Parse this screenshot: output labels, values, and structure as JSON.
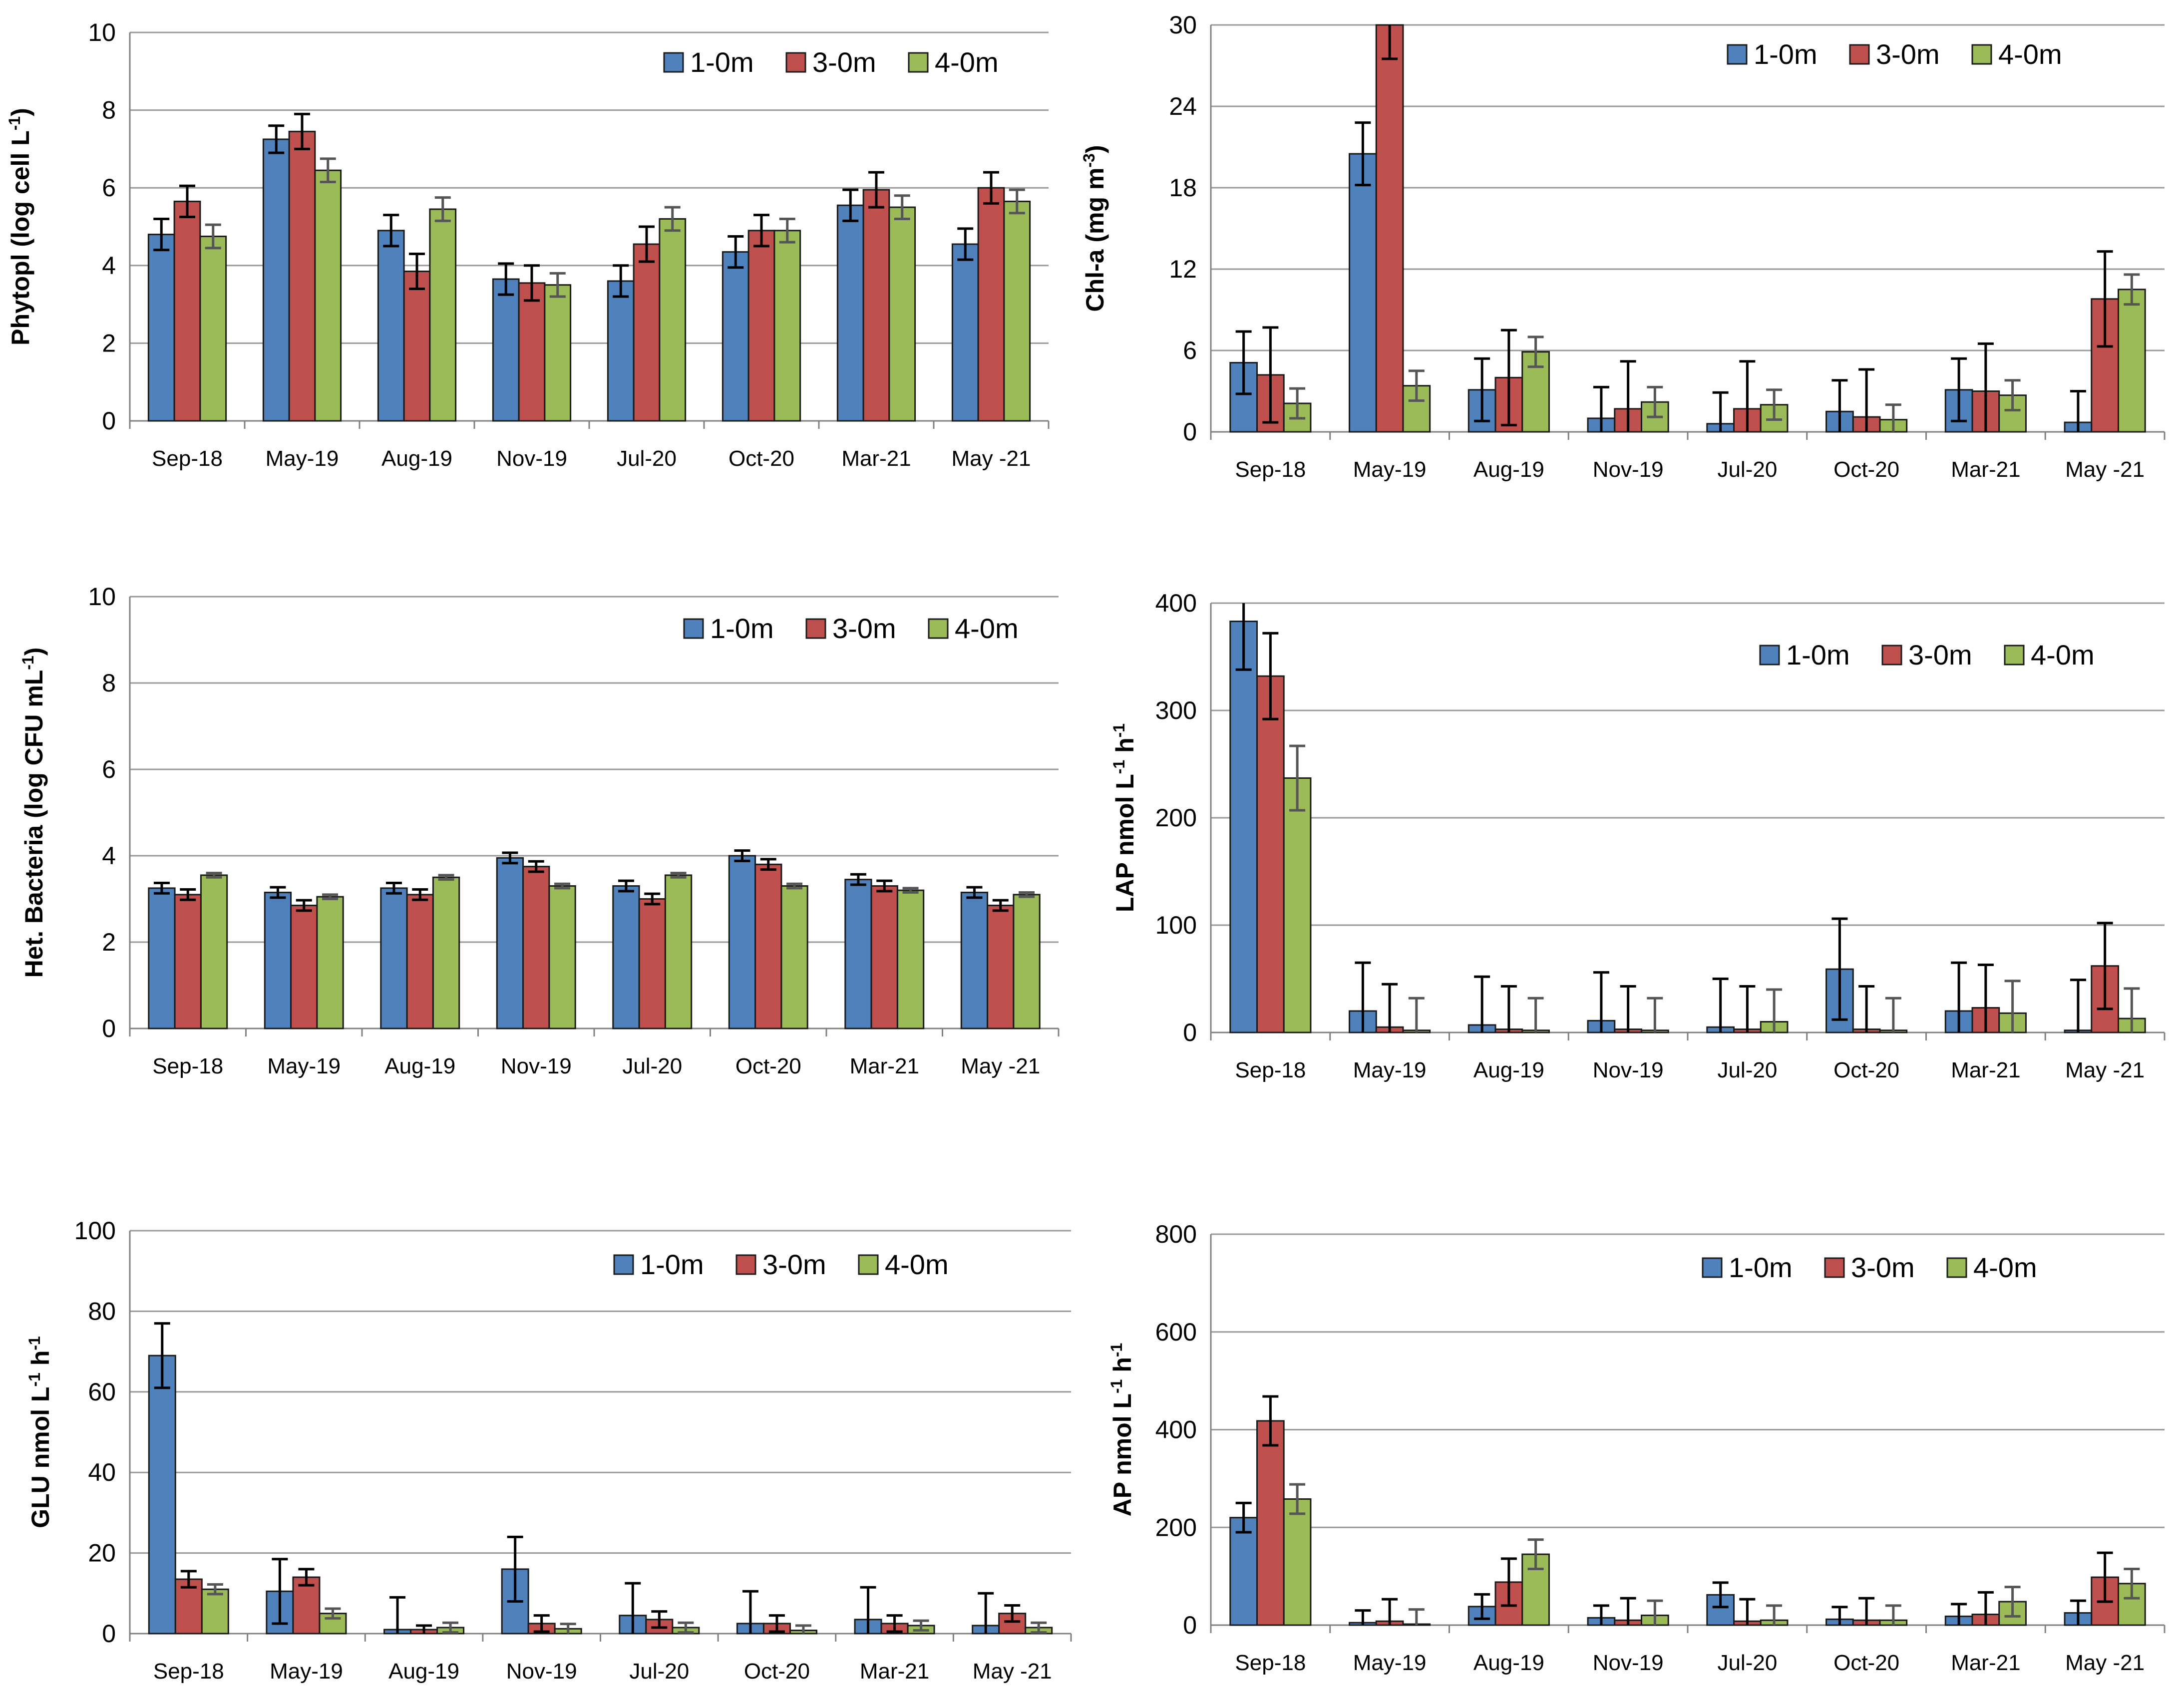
{
  "colors": {
    "s1": "#4F81BD",
    "s2": "#C0504D",
    "s3": "#9BBB59",
    "grid": "#9a9a9a",
    "axis": "#808080"
  },
  "chart_data": [
    {
      "type": "bar",
      "ylabel": "Phytopl (log cell L-1)",
      "ylabel_main": "Phytopl (log cell L",
      "ylabel_sup": "-1",
      "ylabel_end": ")",
      "ylim": [
        0,
        10
      ],
      "yticks": [
        "0",
        "2",
        "4",
        "6",
        "8",
        "10"
      ],
      "categories": [
        "Sep-18",
        "May-19",
        "Aug-19",
        "Nov-19",
        "Jul-20",
        "Oct-20",
        "Mar-21",
        "May -21"
      ],
      "legend": [
        "1-0m",
        "3-0m",
        "4-0m"
      ],
      "series": [
        {
          "name": "1-0m",
          "values": [
            4.8,
            7.25,
            4.9,
            3.65,
            3.6,
            4.35,
            5.55,
            4.55
          ],
          "errors": [
            0.4,
            0.35,
            0.4,
            0.4,
            0.4,
            0.4,
            0.4,
            0.4
          ]
        },
        {
          "name": "3-0m",
          "values": [
            5.65,
            7.45,
            3.85,
            3.55,
            4.55,
            4.9,
            5.95,
            6.0
          ],
          "errors": [
            0.4,
            0.45,
            0.45,
            0.45,
            0.45,
            0.4,
            0.45,
            0.4
          ]
        },
        {
          "name": "4-0m",
          "values": [
            4.75,
            6.45,
            5.45,
            3.5,
            5.2,
            4.9,
            5.5,
            5.65
          ],
          "errors": [
            0.3,
            0.3,
            0.3,
            0.3,
            0.3,
            0.3,
            0.3,
            0.3
          ]
        }
      ]
    },
    {
      "type": "bar",
      "ylabel": "Chl-a (mg m-3)",
      "ylabel_main": "Chl-a (mg m",
      "ylabel_sup": "-3",
      "ylabel_end": ")",
      "ylim": [
        0,
        30
      ],
      "yticks": [
        "0",
        "6",
        "12",
        "18",
        "24",
        "30"
      ],
      "categories": [
        "Sep-18",
        "May-19",
        "Aug-19",
        "Nov-19",
        "Jul-20",
        "Oct-20",
        "Mar-21",
        "May -21"
      ],
      "legend": [
        "1-0m",
        "3-0m",
        "4-0m"
      ],
      "series": [
        {
          "name": "1-0m",
          "values": [
            5.1,
            20.5,
            3.1,
            1.0,
            0.6,
            1.5,
            3.1,
            0.7
          ],
          "errors": [
            2.3,
            2.3,
            2.3,
            2.3,
            2.3,
            2.3,
            2.3,
            2.3
          ]
        },
        {
          "name": "3-0m",
          "values": [
            4.2,
            31,
            4.0,
            1.7,
            1.7,
            1.1,
            3.0,
            9.8
          ],
          "errors": [
            3.5,
            3.5,
            3.5,
            3.5,
            3.5,
            3.5,
            3.5,
            3.5
          ]
        },
        {
          "name": "4-0m",
          "values": [
            2.1,
            3.4,
            5.9,
            2.2,
            2.0,
            0.9,
            2.7,
            10.5
          ],
          "errors": [
            1.1,
            1.1,
            1.1,
            1.1,
            1.1,
            1.1,
            1.1,
            1.1
          ]
        }
      ]
    },
    {
      "type": "bar",
      "ylabel": "Het. Bacteria (log CFU mL-1)",
      "ylabel_main": "Het. Bacteria (log CFU mL",
      "ylabel_sup": "-1",
      "ylabel_end": ")",
      "ylim": [
        0,
        10
      ],
      "yticks": [
        "0",
        "2",
        "4",
        "6",
        "8",
        "10"
      ],
      "categories": [
        "Sep-18",
        "May-19",
        "Aug-19",
        "Nov-19",
        "Jul-20",
        "Oct-20",
        "Mar-21",
        "May -21"
      ],
      "legend": [
        "1-0m",
        "3-0m",
        "4-0m"
      ],
      "series": [
        {
          "name": "1-0m",
          "values": [
            3.25,
            3.15,
            3.25,
            3.95,
            3.3,
            4.0,
            3.45,
            3.15
          ],
          "errors": [
            0.12,
            0.12,
            0.12,
            0.12,
            0.12,
            0.12,
            0.12,
            0.12
          ]
        },
        {
          "name": "3-0m",
          "values": [
            3.1,
            2.85,
            3.1,
            3.75,
            3.0,
            3.8,
            3.3,
            2.85
          ],
          "errors": [
            0.12,
            0.12,
            0.12,
            0.12,
            0.12,
            0.12,
            0.12,
            0.12
          ]
        },
        {
          "name": "4-0m",
          "values": [
            3.55,
            3.05,
            3.5,
            3.3,
            3.55,
            3.3,
            3.2,
            3.1
          ],
          "errors": [
            0.05,
            0.05,
            0.05,
            0.05,
            0.05,
            0.05,
            0.05,
            0.05
          ]
        }
      ]
    },
    {
      "type": "bar",
      "ylabel": "LAP nmol L-1 h-1",
      "ylabel_main": "LAP nmol L",
      "ylabel_sup": "-1",
      "ylabel_mid": " h",
      "ylabel_sup2": "-1",
      "ylim": [
        0,
        400
      ],
      "yticks": [
        "0",
        "100",
        "200",
        "300",
        "400"
      ],
      "categories": [
        "Sep-18",
        "May-19",
        "Aug-19",
        "Nov-19",
        "Jul-20",
        "Oct-20",
        "Mar-21",
        "May -21"
      ],
      "legend": [
        "1-0m",
        "3-0m",
        "4-0m"
      ],
      "series": [
        {
          "name": "1-0m",
          "values": [
            383,
            20,
            7,
            11,
            5,
            59,
            20,
            2
          ],
          "errors": [
            45,
            45,
            45,
            45,
            45,
            47,
            45,
            47
          ]
        },
        {
          "name": "3-0m",
          "values": [
            332,
            5,
            3,
            3,
            3,
            3,
            23,
            62
          ],
          "errors": [
            40,
            40,
            40,
            40,
            40,
            40,
            40,
            40
          ]
        },
        {
          "name": "4-0m",
          "values": [
            237,
            2,
            2,
            2,
            10,
            2,
            18,
            13
          ],
          "errors": [
            30,
            30,
            30,
            30,
            30,
            30,
            30,
            28
          ]
        }
      ]
    },
    {
      "type": "bar",
      "ylabel": "GLU nmol L-1 h-1",
      "ylabel_main": "GLU nmol L",
      "ylabel_sup": "-1",
      "ylabel_mid": " h",
      "ylabel_sup2": "-1",
      "ylim": [
        0,
        100
      ],
      "yticks": [
        "0",
        "20",
        "40",
        "60",
        "80",
        "100"
      ],
      "categories": [
        "Sep-18",
        "May-19",
        "Aug-19",
        "Nov-19",
        "Jul-20",
        "Oct-20",
        "Mar-21",
        "May -21"
      ],
      "legend": [
        "1-0m",
        "3-0m",
        "4-0m"
      ],
      "series": [
        {
          "name": "1-0m",
          "values": [
            69,
            10.5,
            1,
            16,
            4.5,
            2.5,
            3.5,
            2
          ],
          "errors": [
            8,
            8,
            8,
            8,
            8,
            8,
            8,
            8
          ]
        },
        {
          "name": "3-0m",
          "values": [
            13.5,
            14,
            1,
            2.5,
            3.5,
            2.5,
            2.5,
            5
          ],
          "errors": [
            2,
            2,
            1,
            2,
            2,
            2,
            2,
            2
          ]
        },
        {
          "name": "4-0m",
          "values": [
            11,
            5,
            1.5,
            1.2,
            1.5,
            0.8,
            2,
            1.5
          ],
          "errors": [
            1.2,
            1.2,
            1.2,
            1.2,
            1.2,
            1.2,
            1.2,
            1.2
          ]
        }
      ]
    },
    {
      "type": "bar",
      "ylabel": "AP nmol L-1 h-1",
      "ylabel_main": "AP nmol L",
      "ylabel_sup": "-1",
      "ylabel_mid": " h",
      "ylabel_sup2": "-1",
      "ylim": [
        0,
        800
      ],
      "yticks": [
        "0",
        "200",
        "400",
        "600",
        "800"
      ],
      "categories": [
        "Sep-18",
        "May-19",
        "Aug-19",
        "Nov-19",
        "Jul-20",
        "Oct-20",
        "Mar-21",
        "May -21"
      ],
      "legend": [
        "1-0m",
        "3-0m",
        "4-0m"
      ],
      "series": [
        {
          "name": "1-0m",
          "values": [
            220,
            5,
            38,
            15,
            62,
            12,
            18,
            25
          ],
          "errors": [
            30,
            25,
            25,
            25,
            25,
            25,
            25,
            25
          ]
        },
        {
          "name": "3-0m",
          "values": [
            418,
            8,
            88,
            10,
            8,
            10,
            22,
            98
          ],
          "errors": [
            50,
            45,
            48,
            45,
            45,
            45,
            45,
            50
          ]
        },
        {
          "name": "4-0m",
          "values": [
            258,
            2,
            145,
            20,
            10,
            10,
            48,
            85
          ],
          "errors": [
            30,
            30,
            30,
            30,
            30,
            30,
            30,
            30
          ]
        }
      ]
    }
  ]
}
